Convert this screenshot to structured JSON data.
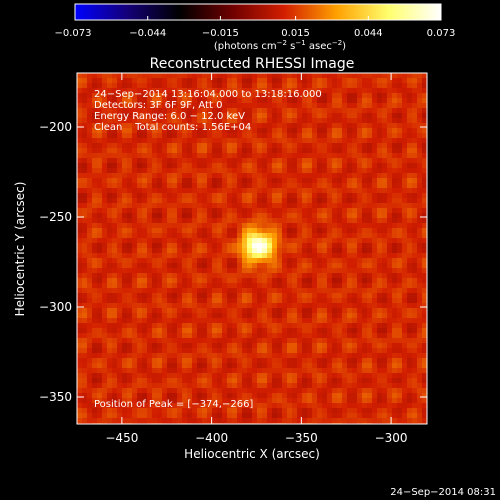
{
  "colorbar": {
    "ticks": [
      -0.073,
      -0.044,
      -0.015,
      0.015,
      0.044,
      0.073
    ],
    "tick_labels": [
      "−0.073",
      "−0.044",
      "−0.015",
      "0.015",
      "0.044",
      "0.073"
    ],
    "unit_text": "(photons cm",
    "unit_exp1": "−2",
    "unit_mid": " s",
    "unit_exp2": "−1",
    "unit_end": " asec",
    "unit_exp3": "−2",
    "unit_close": ")",
    "range": [
      -0.073,
      0.073
    ],
    "colors": [
      "#0000ff",
      "#140078",
      "#000000",
      "#6e0000",
      "#d21e00",
      "#ffa000",
      "#ffff6e",
      "#ffffff"
    ]
  },
  "chart_data": {
    "type": "heatmap",
    "title": "Reconstructed RHESSI Image",
    "xlabel": "Heliocentric X (arcsec)",
    "ylabel": "Heliocentric Y (arcsec)",
    "xlim": [
      -475,
      -280
    ],
    "ylim": [
      -365,
      -170
    ],
    "xticks": [
      -450,
      -400,
      -350,
      -300
    ],
    "yticks": [
      -200,
      -250,
      -300,
      -350
    ],
    "xtick_labels": [
      "−450",
      "−400",
      "−350",
      "−300"
    ],
    "ytick_labels": [
      "−200",
      "−250",
      "−300",
      "−350"
    ],
    "peak": [
      -374,
      -266
    ],
    "peak_value": 0.073,
    "background_level": 0.012,
    "info": [
      "24−Sep−2014 13:16:04.000 to 13:18:16.000",
      "Detectors: 3F 6F 9F, Att 0",
      "Energy Range: 6.0 − 12.0 keV",
      "Clean    Total counts: 1.56E+04"
    ],
    "peak_label": "Position of Peak = [−374,−266]"
  },
  "footer": {
    "timestamp": "24−Sep−2014 08:31"
  }
}
